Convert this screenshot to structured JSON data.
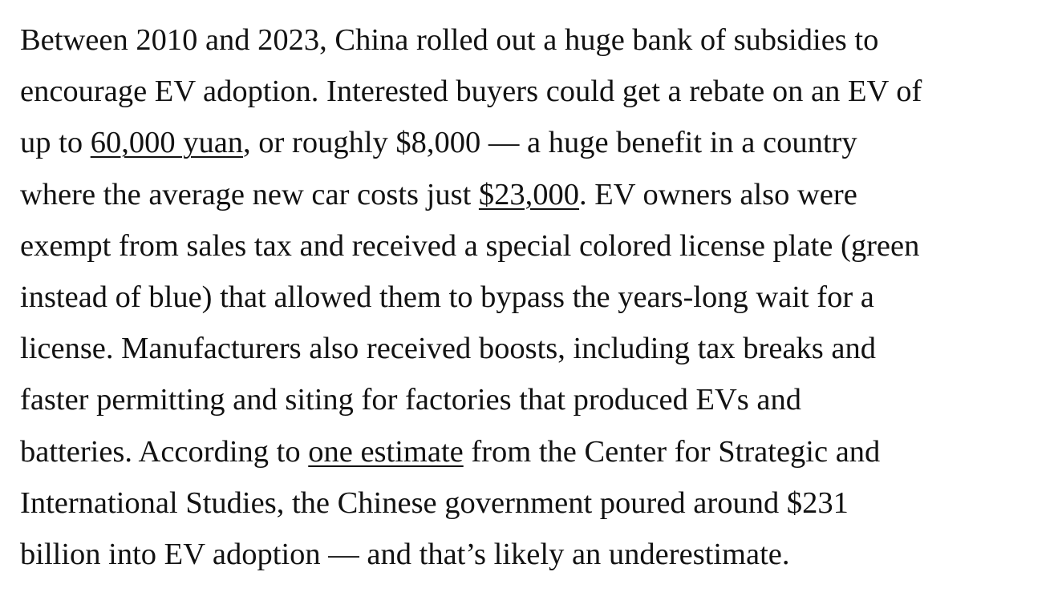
{
  "paragraph": {
    "lines": [
      [
        {
          "text": "Between 2010 and 2023, China rolled out a huge bank of subsidies to"
        }
      ],
      [
        {
          "text": "encourage EV adoption. Interested buyers could get a rebate on an EV of"
        }
      ],
      [
        {
          "text": "up to "
        },
        {
          "text": "60,000 yuan",
          "link": true
        },
        {
          "text": ", or roughly $8,000 — a huge benefit in a country"
        }
      ],
      [
        {
          "text": "where the average new car costs just "
        },
        {
          "text": "$23,000",
          "link": true
        },
        {
          "text": ". EV owners also were"
        }
      ],
      [
        {
          "text": "exempt from sales tax and received a special colored license plate (green"
        }
      ],
      [
        {
          "text": "instead of blue) that allowed them to bypass the years-long wait for a"
        }
      ],
      [
        {
          "text": "license. Manufacturers also received boosts, including tax breaks and"
        }
      ],
      [
        {
          "text": "faster permitting and siting for factories that produced EVs and"
        }
      ],
      [
        {
          "text": "batteries. According to "
        },
        {
          "text": "one estimate",
          "link": true
        },
        {
          "text": " from the Center for Strategic and"
        }
      ],
      [
        {
          "text": "International Studies, the Chinese government poured around $231"
        }
      ],
      [
        {
          "text": "billion into EV adoption — and that’s likely an underestimate."
        }
      ]
    ]
  }
}
